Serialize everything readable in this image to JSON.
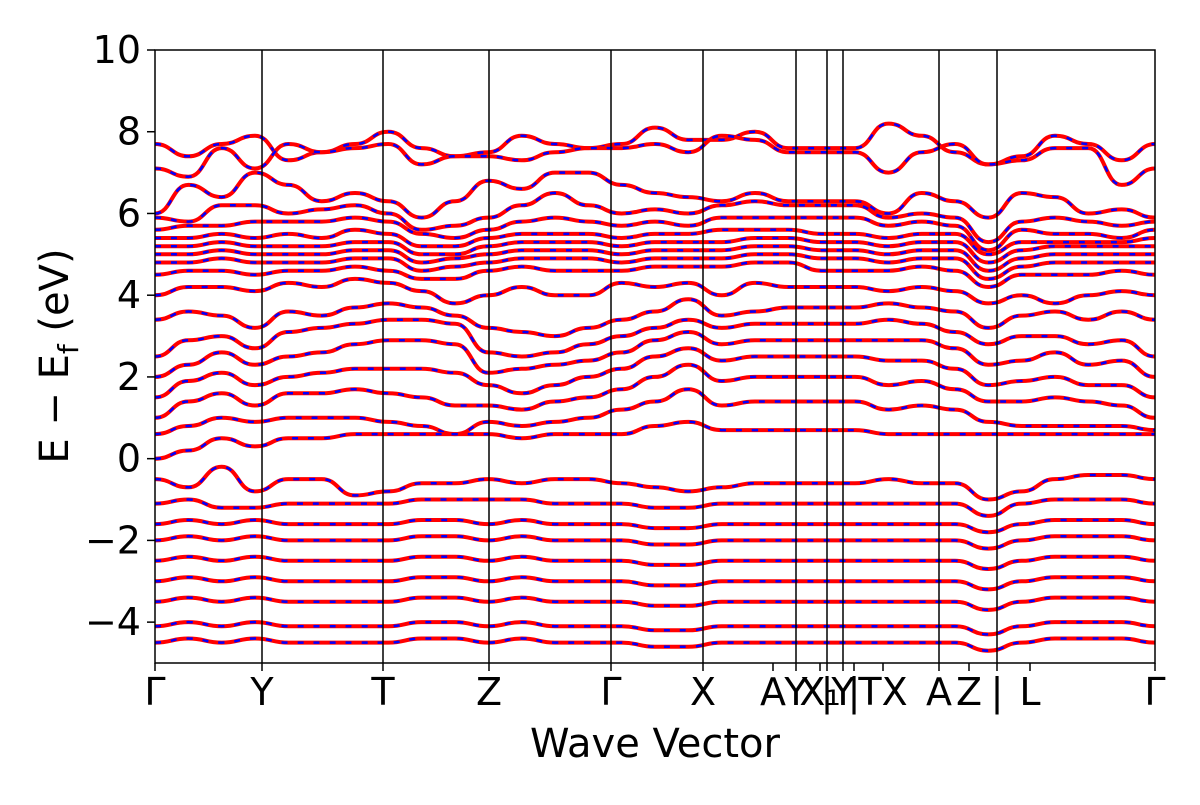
{
  "chart_data": {
    "type": "line",
    "title": "",
    "xlabel": "Wave Vector",
    "ylabel": "E − E_f (eV)",
    "ylabel_main": "E − E",
    "ylabel_sub": "f",
    "ylabel_unit": " (eV)",
    "ylim": [
      -5,
      10
    ],
    "yticks": [
      -4,
      -2,
      0,
      2,
      4,
      6,
      8,
      10
    ],
    "ytick_labels": [
      "−4",
      "−2",
      "0",
      "2",
      "4",
      "6",
      "8",
      "10"
    ],
    "grid": false,
    "legend": "none",
    "colors": {
      "primary": "#ff0000",
      "secondary": "#0000ff",
      "divider": "#000000"
    },
    "kpath_ticks": [
      {
        "label": "Γ",
        "x": 0.0,
        "line": false
      },
      {
        "label": "Y",
        "x": 0.107,
        "line": true
      },
      {
        "label": "T",
        "x": 0.228,
        "line": true
      },
      {
        "label": "Z",
        "x": 0.334,
        "line": true
      },
      {
        "label": "Γ",
        "x": 0.456,
        "line": true
      },
      {
        "label": "X",
        "x": 0.548,
        "line": true
      },
      {
        "label": "A",
        "x": 0.618,
        "line": false
      },
      {
        "label": "Y",
        "x": 0.641,
        "line": true
      },
      {
        "label": "X₁",
        "x": 0.665,
        "line": false
      },
      {
        "label": "|",
        "x": 0.672,
        "line": true
      },
      {
        "label": "Y",
        "x": 0.688,
        "line": true
      },
      {
        "label": "|",
        "x": 0.699,
        "line": false
      },
      {
        "label": "TX",
        "x": 0.728,
        "line": false
      },
      {
        "label": "A",
        "x": 0.784,
        "line": true
      },
      {
        "label": "Z",
        "x": 0.814,
        "line": false
      },
      {
        "label": "|",
        "x": 0.842,
        "line": true
      },
      {
        "label": "L",
        "x": 0.875,
        "line": false
      },
      {
        "label": "Γ",
        "x": 1.0,
        "line": false
      }
    ],
    "x_range": [
      0,
      1
    ],
    "bands_description": "Dense set of electronic bands; each band drawn as solid red with dashed blue overlay (two overlapping datasets).",
    "bands": [
      [
        7.7,
        7.4,
        7.7,
        7.9,
        7.3,
        7.5,
        7.7,
        8.0,
        7.6,
        7.4,
        7.5,
        7.9,
        7.7,
        7.6,
        7.7,
        8.1,
        7.8,
        7.8,
        8.0,
        7.6,
        7.6,
        7.6,
        8.2,
        7.9,
        7.5,
        7.2,
        7.4,
        7.9,
        7.7,
        7.3,
        7.7
      ],
      [
        7.1,
        6.9,
        7.6,
        7.1,
        7.7,
        7.5,
        7.6,
        7.7,
        7.2,
        7.4,
        7.4,
        7.3,
        7.5,
        7.6,
        7.6,
        7.7,
        7.5,
        7.9,
        7.8,
        7.5,
        7.5,
        7.5,
        7.0,
        7.5,
        7.7,
        7.2,
        7.3,
        7.6,
        7.6,
        6.7,
        7.1
      ],
      [
        6.0,
        6.7,
        6.4,
        7.0,
        6.7,
        6.3,
        6.5,
        6.3,
        5.9,
        6.3,
        6.8,
        6.6,
        7.0,
        7.0,
        6.7,
        6.5,
        6.4,
        6.3,
        6.5,
        6.3,
        6.3,
        6.3,
        6.0,
        6.5,
        6.3,
        5.9,
        6.5,
        6.4,
        6.0,
        6.1,
        5.9
      ],
      [
        5.9,
        5.8,
        6.2,
        6.2,
        6.0,
        6.1,
        6.2,
        6.0,
        5.6,
        5.7,
        5.9,
        6.2,
        6.5,
        6.2,
        6.0,
        6.1,
        6.0,
        6.2,
        6.3,
        6.2,
        6.2,
        6.2,
        5.9,
        6.0,
        5.9,
        5.3,
        5.8,
        5.9,
        5.8,
        5.7,
        5.8
      ],
      [
        5.6,
        5.7,
        5.7,
        5.8,
        5.8,
        5.8,
        5.9,
        5.8,
        5.5,
        5.4,
        5.6,
        5.8,
        5.9,
        5.8,
        5.7,
        5.8,
        5.7,
        5.9,
        5.9,
        5.9,
        5.9,
        5.9,
        5.7,
        5.8,
        5.7,
        5.1,
        5.6,
        5.5,
        5.5,
        5.4,
        5.6
      ],
      [
        5.4,
        5.4,
        5.5,
        5.4,
        5.5,
        5.4,
        5.6,
        5.5,
        5.2,
        5.2,
        5.4,
        5.5,
        5.5,
        5.5,
        5.4,
        5.5,
        5.5,
        5.6,
        5.6,
        5.6,
        5.5,
        5.5,
        5.4,
        5.5,
        5.5,
        5.0,
        5.3,
        5.3,
        5.3,
        5.3,
        5.4
      ],
      [
        5.2,
        5.2,
        5.3,
        5.2,
        5.2,
        5.2,
        5.3,
        5.3,
        5.0,
        5.0,
        5.2,
        5.3,
        5.3,
        5.3,
        5.2,
        5.3,
        5.3,
        5.3,
        5.4,
        5.4,
        5.3,
        5.3,
        5.2,
        5.3,
        5.3,
        4.8,
        5.1,
        5.2,
        5.2,
        5.2,
        5.2
      ],
      [
        5.0,
        5.0,
        5.1,
        5.0,
        5.0,
        5.0,
        5.1,
        5.1,
        4.8,
        4.9,
        5.0,
        5.1,
        5.1,
        5.1,
        5.0,
        5.1,
        5.1,
        5.1,
        5.2,
        5.2,
        5.1,
        5.1,
        5.0,
        5.1,
        5.1,
        4.6,
        4.9,
        5.0,
        5.0,
        5.0,
        5.0
      ],
      [
        4.8,
        4.8,
        4.9,
        4.8,
        4.8,
        4.8,
        4.9,
        4.9,
        4.6,
        4.7,
        4.8,
        4.9,
        4.9,
        4.9,
        4.8,
        4.9,
        4.9,
        4.9,
        5.0,
        5.0,
        4.9,
        4.9,
        4.8,
        4.9,
        4.9,
        4.4,
        4.7,
        4.8,
        4.8,
        4.8,
        4.8
      ],
      [
        4.5,
        4.6,
        4.6,
        4.5,
        4.6,
        4.6,
        4.7,
        4.6,
        4.4,
        4.4,
        4.6,
        4.7,
        4.6,
        4.6,
        4.6,
        4.7,
        4.7,
        4.7,
        4.8,
        4.8,
        4.6,
        4.6,
        4.6,
        4.7,
        4.6,
        4.2,
        4.5,
        4.5,
        4.5,
        4.6,
        4.5
      ],
      [
        4.0,
        4.2,
        4.2,
        4.1,
        4.3,
        4.2,
        4.4,
        4.3,
        4.1,
        3.8,
        4.0,
        4.2,
        4.0,
        4.0,
        4.3,
        4.2,
        4.3,
        4.0,
        4.3,
        4.2,
        4.2,
        4.2,
        4.1,
        4.2,
        4.1,
        3.8,
        4.0,
        3.8,
        4.0,
        4.1,
        4.0
      ],
      [
        3.4,
        3.6,
        3.5,
        3.2,
        3.6,
        3.5,
        3.7,
        3.8,
        3.7,
        3.5,
        3.2,
        3.1,
        3.0,
        3.2,
        3.4,
        3.6,
        3.9,
        3.5,
        3.6,
        3.7,
        3.7,
        3.7,
        3.8,
        3.7,
        3.6,
        3.2,
        3.5,
        3.6,
        3.4,
        3.6,
        3.4
      ],
      [
        2.5,
        2.9,
        3.0,
        2.7,
        3.1,
        3.2,
        3.3,
        3.4,
        3.4,
        3.3,
        2.6,
        2.5,
        2.6,
        2.8,
        3.0,
        3.2,
        3.4,
        3.2,
        3.3,
        3.3,
        3.3,
        3.3,
        3.4,
        3.3,
        3.1,
        2.8,
        3.0,
        3.0,
        2.8,
        2.9,
        2.5
      ],
      [
        2.0,
        2.3,
        2.6,
        2.3,
        2.5,
        2.6,
        2.8,
        2.9,
        2.9,
        2.8,
        2.1,
        2.2,
        2.3,
        2.4,
        2.6,
        2.9,
        3.1,
        2.8,
        2.9,
        2.9,
        2.9,
        2.9,
        2.9,
        2.9,
        2.7,
        2.3,
        2.4,
        2.6,
        2.3,
        2.4,
        2.0
      ],
      [
        1.5,
        1.9,
        2.1,
        1.8,
        2.0,
        2.1,
        2.2,
        2.2,
        2.2,
        2.1,
        1.8,
        1.6,
        1.8,
        2.0,
        2.2,
        2.5,
        2.7,
        2.4,
        2.5,
        2.5,
        2.5,
        2.5,
        2.4,
        2.4,
        2.2,
        1.8,
        1.9,
        2.0,
        1.8,
        1.8,
        1.5
      ],
      [
        1.0,
        1.4,
        1.6,
        1.3,
        1.6,
        1.6,
        1.7,
        1.6,
        1.5,
        1.3,
        1.3,
        1.2,
        1.4,
        1.5,
        1.7,
        2.0,
        2.3,
        1.9,
        2.0,
        2.0,
        2.0,
        2.0,
        1.8,
        1.9,
        1.7,
        1.4,
        1.4,
        1.5,
        1.4,
        1.3,
        1.0
      ],
      [
        0.6,
        0.8,
        1.0,
        0.9,
        1.0,
        1.0,
        1.0,
        0.9,
        0.8,
        0.6,
        0.9,
        0.8,
        0.9,
        1.0,
        1.2,
        1.4,
        1.7,
        1.3,
        1.4,
        1.4,
        1.4,
        1.4,
        1.2,
        1.3,
        1.2,
        0.9,
        0.8,
        0.8,
        0.8,
        0.8,
        0.7
      ],
      [
        0.0,
        0.2,
        0.5,
        0.3,
        0.5,
        0.5,
        0.6,
        0.6,
        0.6,
        0.6,
        0.6,
        0.5,
        0.6,
        0.6,
        0.6,
        0.8,
        0.9,
        0.7,
        0.7,
        0.7,
        0.7,
        0.7,
        0.6,
        0.6,
        0.6,
        0.6,
        0.6,
        0.6,
        0.6,
        0.6,
        0.6
      ],
      [
        -0.5,
        -0.7,
        -0.2,
        -0.8,
        -0.5,
        -0.5,
        -0.9,
        -0.8,
        -0.6,
        -0.6,
        -0.5,
        -0.6,
        -0.5,
        -0.5,
        -0.6,
        -0.7,
        -0.8,
        -0.7,
        -0.6,
        -0.6,
        -0.6,
        -0.6,
        -0.5,
        -0.6,
        -0.6,
        -1.0,
        -0.8,
        -0.5,
        -0.4,
        -0.4,
        -0.5
      ],
      [
        -1.1,
        -1.0,
        -1.2,
        -1.2,
        -1.1,
        -1.1,
        -1.1,
        -1.1,
        -1.0,
        -1.0,
        -1.0,
        -1.0,
        -1.1,
        -1.1,
        -1.1,
        -1.2,
        -1.2,
        -1.1,
        -1.1,
        -1.1,
        -1.1,
        -1.1,
        -1.1,
        -1.1,
        -1.1,
        -1.4,
        -1.1,
        -1.0,
        -1.0,
        -1.0,
        -1.1
      ],
      [
        -1.6,
        -1.5,
        -1.6,
        -1.5,
        -1.6,
        -1.6,
        -1.6,
        -1.6,
        -1.5,
        -1.5,
        -1.6,
        -1.5,
        -1.6,
        -1.6,
        -1.6,
        -1.7,
        -1.7,
        -1.6,
        -1.6,
        -1.6,
        -1.6,
        -1.6,
        -1.6,
        -1.6,
        -1.6,
        -1.8,
        -1.6,
        -1.5,
        -1.5,
        -1.5,
        -1.6
      ],
      [
        -2.0,
        -1.9,
        -2.0,
        -1.9,
        -2.0,
        -2.0,
        -2.0,
        -2.0,
        -1.9,
        -1.9,
        -2.0,
        -1.9,
        -2.0,
        -2.0,
        -2.0,
        -2.1,
        -2.1,
        -2.0,
        -2.0,
        -2.0,
        -2.0,
        -2.0,
        -2.0,
        -2.0,
        -2.0,
        -2.2,
        -2.0,
        -1.9,
        -1.9,
        -1.9,
        -2.0
      ],
      [
        -2.5,
        -2.4,
        -2.5,
        -2.4,
        -2.5,
        -2.5,
        -2.5,
        -2.5,
        -2.4,
        -2.4,
        -2.5,
        -2.4,
        -2.5,
        -2.5,
        -2.5,
        -2.6,
        -2.6,
        -2.5,
        -2.5,
        -2.5,
        -2.5,
        -2.5,
        -2.5,
        -2.5,
        -2.5,
        -2.7,
        -2.5,
        -2.4,
        -2.4,
        -2.4,
        -2.5
      ],
      [
        -3.0,
        -2.9,
        -3.0,
        -2.9,
        -3.0,
        -3.0,
        -3.0,
        -3.0,
        -2.9,
        -2.9,
        -3.0,
        -2.9,
        -3.0,
        -3.0,
        -3.0,
        -3.1,
        -3.1,
        -3.0,
        -3.0,
        -3.0,
        -3.0,
        -3.0,
        -3.0,
        -3.0,
        -3.0,
        -3.2,
        -3.0,
        -2.9,
        -2.9,
        -2.9,
        -3.0
      ],
      [
        -3.5,
        -3.4,
        -3.5,
        -3.4,
        -3.5,
        -3.5,
        -3.5,
        -3.5,
        -3.4,
        -3.4,
        -3.5,
        -3.4,
        -3.5,
        -3.5,
        -3.5,
        -3.6,
        -3.6,
        -3.5,
        -3.5,
        -3.5,
        -3.5,
        -3.5,
        -3.5,
        -3.5,
        -3.5,
        -3.7,
        -3.5,
        -3.4,
        -3.4,
        -3.4,
        -3.5
      ],
      [
        -4.1,
        -4.0,
        -4.1,
        -4.0,
        -4.1,
        -4.1,
        -4.1,
        -4.1,
        -4.0,
        -4.0,
        -4.1,
        -4.0,
        -4.1,
        -4.1,
        -4.1,
        -4.2,
        -4.2,
        -4.1,
        -4.1,
        -4.1,
        -4.1,
        -4.1,
        -4.1,
        -4.1,
        -4.1,
        -4.3,
        -4.1,
        -4.0,
        -4.0,
        -4.0,
        -4.1
      ],
      [
        -4.5,
        -4.4,
        -4.5,
        -4.4,
        -4.5,
        -4.5,
        -4.5,
        -4.5,
        -4.4,
        -4.4,
        -4.5,
        -4.4,
        -4.5,
        -4.5,
        -4.5,
        -4.6,
        -4.6,
        -4.5,
        -4.5,
        -4.5,
        -4.5,
        -4.5,
        -4.5,
        -4.5,
        -4.5,
        -4.7,
        -4.5,
        -4.4,
        -4.4,
        -4.4,
        -4.5
      ]
    ]
  }
}
